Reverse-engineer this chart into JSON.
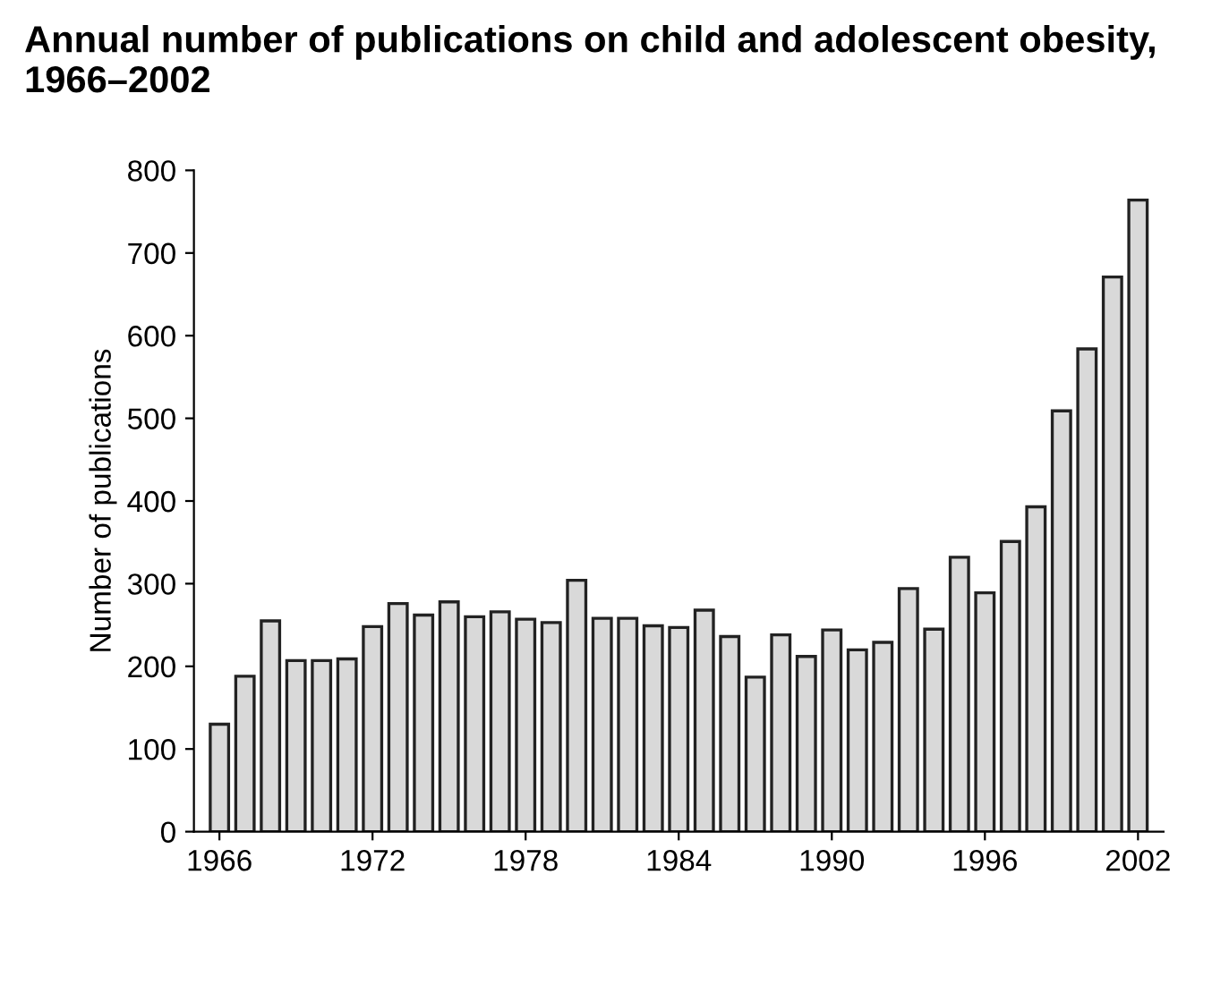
{
  "chart_data": {
    "type": "bar",
    "title": "Annual number of publications on child and adolescent obesity, 1966–2002",
    "ylabel": "Number of publications",
    "x": [
      1966,
      1967,
      1968,
      1969,
      1970,
      1971,
      1972,
      1973,
      1974,
      1975,
      1976,
      1977,
      1978,
      1979,
      1980,
      1981,
      1982,
      1983,
      1984,
      1985,
      1986,
      1987,
      1988,
      1989,
      1990,
      1991,
      1992,
      1993,
      1994,
      1995,
      1996,
      1997,
      1998,
      1999,
      2000,
      2001,
      2002
    ],
    "values": [
      130,
      188,
      255,
      207,
      207,
      209,
      248,
      276,
      262,
      278,
      260,
      266,
      257,
      253,
      304,
      258,
      258,
      249,
      247,
      268,
      236,
      187,
      238,
      212,
      244,
      220,
      229,
      294,
      245,
      332,
      289,
      351,
      393,
      509,
      584,
      671,
      764
    ],
    "color": "#d9d9d9",
    "xlim": [
      1965,
      2003
    ],
    "xticks": [
      1966,
      1972,
      1978,
      1984,
      1990,
      1996,
      2002
    ],
    "ylim": [
      0,
      800
    ],
    "yticks": [
      0,
      100,
      200,
      300,
      400,
      500,
      600,
      700,
      800
    ],
    "grid": false
  }
}
